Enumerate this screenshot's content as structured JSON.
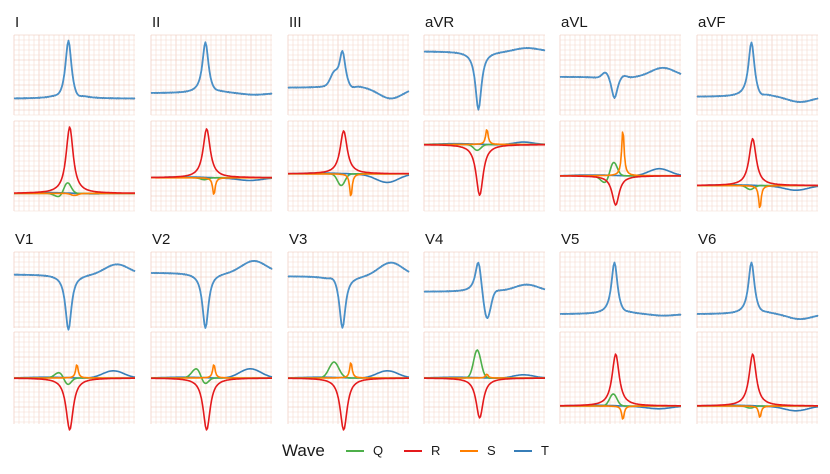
{
  "chart_data": {
    "type": "line",
    "leads": [
      "I",
      "II",
      "III",
      "aVR",
      "aVL",
      "aVF",
      "V1",
      "V2",
      "V3",
      "V4",
      "V5",
      "V6"
    ],
    "legend": {
      "title": "Wave",
      "placement": "bottom",
      "entries": [
        {
          "name": "Q",
          "color": "#4daf4a"
        },
        {
          "name": "R",
          "color": "#e41a1c"
        },
        {
          "name": "S",
          "color": "#ff7f00"
        },
        {
          "name": "T",
          "color": "#377eb8"
        }
      ]
    },
    "signal_colors": {
      "measured": "#595959",
      "reconstructed": "#4a90c8"
    },
    "grid": true,
    "grid_colors": {
      "minor": "#f5d9cf",
      "major": "#ecc1b2"
    },
    "signal_ylim": [
      -1,
      1
    ],
    "wave_ylim": [
      -1,
      1
    ],
    "panels": [
      {
        "lead": "I",
        "signal": {
          "baseline": -0.65,
          "r": 1.6,
          "q": -0.05,
          "s": -0.1,
          "t": 0.0,
          "lag": 0.0
        },
        "waves": {
          "base": -0.7,
          "q": [
            -0.1,
            0.3
          ],
          "r": 1.7,
          "s": [
            -0.05,
            0.0
          ],
          "t": 0.02
        }
      },
      {
        "lead": "II",
        "signal": {
          "baseline": -0.5,
          "r": 1.4,
          "q": 0.0,
          "s": -0.05,
          "t": -0.05,
          "lag": 0.0
        },
        "waves": {
          "base": -0.3,
          "q": [
            0.0,
            -0.05
          ],
          "r": 1.25,
          "s": [
            -0.0,
            -0.45
          ],
          "t": -0.05
        }
      },
      {
        "lead": "III",
        "signal": {
          "baseline": -0.35,
          "r": 1.0,
          "q": 0.3,
          "s": -0.1,
          "t": -0.3,
          "lag": 0.0
        },
        "waves": {
          "base": -0.2,
          "q": [
            0.0,
            -0.3
          ],
          "r": 1.1,
          "s": [
            0.0,
            -0.6
          ],
          "t": -0.2
        }
      },
      {
        "lead": "aVR",
        "signal": {
          "baseline": 0.65,
          "r": -1.6,
          "q": 0.0,
          "s": 0.0,
          "t": 0.1,
          "lag": 0.0
        },
        "waves": {
          "base": 0.55,
          "q": [
            0.0,
            -0.15
          ],
          "r": -1.3,
          "s": [
            0.0,
            0.4
          ],
          "t": 0.08
        }
      },
      {
        "lead": "aVL",
        "signal": {
          "baseline": -0.05,
          "r": -0.6,
          "q": 0.2,
          "s": 0.1,
          "t": 0.25,
          "lag": 0.0
        },
        "waves": {
          "base": -0.25,
          "q": [
            -0.2,
            0.4
          ],
          "r": -0.75,
          "s": [
            0.0,
            1.2
          ],
          "t": 0.2
        }
      },
      {
        "lead": "aVF",
        "signal": {
          "baseline": -0.6,
          "r": 1.5,
          "q": 0.0,
          "s": -0.1,
          "t": -0.15,
          "lag": 0.0
        },
        "waves": {
          "base": -0.5,
          "q": [
            0.0,
            -0.1
          ],
          "r": 1.2,
          "s": [
            0.0,
            -0.6
          ],
          "t": -0.1
        }
      },
      {
        "lead": "V1",
        "signal": {
          "baseline": 0.45,
          "r": -1.6,
          "q": 0.0,
          "s": 0.0,
          "t": 0.3,
          "lag": 0.0
        },
        "waves": {
          "base": 0.0,
          "q": [
            0.15,
            -0.2
          ],
          "r": -1.3,
          "s": [
            0.0,
            0.35
          ],
          "t": 0.2
        }
      },
      {
        "lead": "V2",
        "signal": {
          "baseline": 0.5,
          "r": -1.6,
          "q": 0.0,
          "s": 0.0,
          "t": 0.35,
          "lag": 0.0
        },
        "waves": {
          "base": 0.0,
          "q": [
            0.25,
            -0.2
          ],
          "r": -1.3,
          "s": [
            0.0,
            0.35
          ],
          "t": 0.25
        }
      },
      {
        "lead": "V3",
        "signal": {
          "baseline": 0.4,
          "r": -1.5,
          "q": 0.1,
          "s": 0.0,
          "t": 0.4,
          "lag": 0.0
        },
        "waves": {
          "base": 0.0,
          "q": [
            0.4,
            0.0
          ],
          "r": -1.3,
          "s": [
            0.0,
            0.4
          ],
          "t": 0.2
        }
      },
      {
        "lead": "V4",
        "signal": {
          "baseline": -0.05,
          "r": 0.9,
          "q": 0.0,
          "s": -0.9,
          "t": 0.2,
          "lag": 0.0
        },
        "waves": {
          "base": 0.0,
          "q": [
            0.0,
            0.7
          ],
          "r": -1.0,
          "s": [
            0.0,
            0.1
          ],
          "t": 0.1
        }
      },
      {
        "lead": "V5",
        "signal": {
          "baseline": -0.7,
          "r": 1.5,
          "q": 0.0,
          "s": -0.05,
          "t": -0.05,
          "lag": 0.0
        },
        "waves": {
          "base": -0.7,
          "q": [
            0.0,
            0.3
          ],
          "r": 1.3,
          "s": [
            0.0,
            -0.35
          ],
          "t": -0.05
        }
      },
      {
        "lead": "V6",
        "signal": {
          "baseline": -0.7,
          "r": 1.5,
          "q": 0.0,
          "s": -0.05,
          "t": -0.15,
          "lag": 0.0
        },
        "waves": {
          "base": -0.7,
          "q": [
            0.0,
            -0.05
          ],
          "r": 1.3,
          "s": [
            0.0,
            -0.3
          ],
          "t": -0.1
        }
      }
    ]
  }
}
